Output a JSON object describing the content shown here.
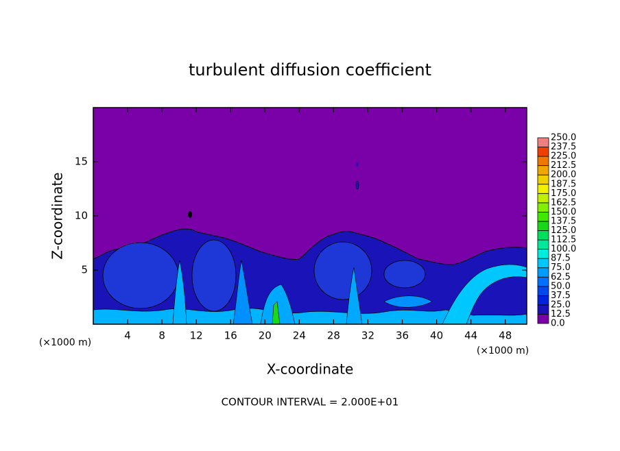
{
  "chart_data": {
    "type": "contour",
    "title": "turbulent diffusion coefficient",
    "x_label": "X-coordinate",
    "y_label": "Z-coordinate",
    "x_unit": "(×1000 m)",
    "y_unit": "(×1000 m)",
    "footer": "CONTOUR INTERVAL = 2.000E+01",
    "xlim": [
      0,
      50.5
    ],
    "ylim": [
      0,
      20
    ],
    "xticks": [
      4,
      8,
      12,
      16,
      20,
      24,
      28,
      32,
      36,
      40,
      44,
      48
    ],
    "yticks": [
      5,
      10,
      15
    ],
    "colorbar": {
      "levels": [
        {
          "value": 0,
          "label": "0.0"
        },
        12.5,
        {
          "value": 25,
          "label": "25.0"
        },
        37.5,
        {
          "value": 50,
          "label": "50.0"
        },
        62.5,
        {
          "value": 75,
          "label": "75.0"
        },
        87.5,
        {
          "value": 100,
          "label": "100.0"
        },
        112.5,
        {
          "value": 125,
          "label": "125.0"
        },
        137.5,
        {
          "value": 150,
          "label": "150.0"
        },
        162.5,
        {
          "value": 175,
          "label": "175.0"
        },
        187.5,
        {
          "value": 200,
          "label": "200.0"
        },
        212.5,
        {
          "value": 225,
          "label": "225.0"
        },
        237.5,
        {
          "value": 250,
          "label": "250.0"
        }
      ],
      "colors": [
        "#7a00a8",
        "#1c10b8",
        "#0024dc",
        "#0048ee",
        "#0070ff",
        "#009cff",
        "#00c8ff",
        "#00ecdc",
        "#00e89c",
        "#00e05c",
        "#18d818",
        "#40e800",
        "#80f000",
        "#c0f000",
        "#f0f000",
        "#f0d000",
        "#f0a800",
        "#f07800",
        "#f04000",
        "#f08080"
      ]
    }
  }
}
